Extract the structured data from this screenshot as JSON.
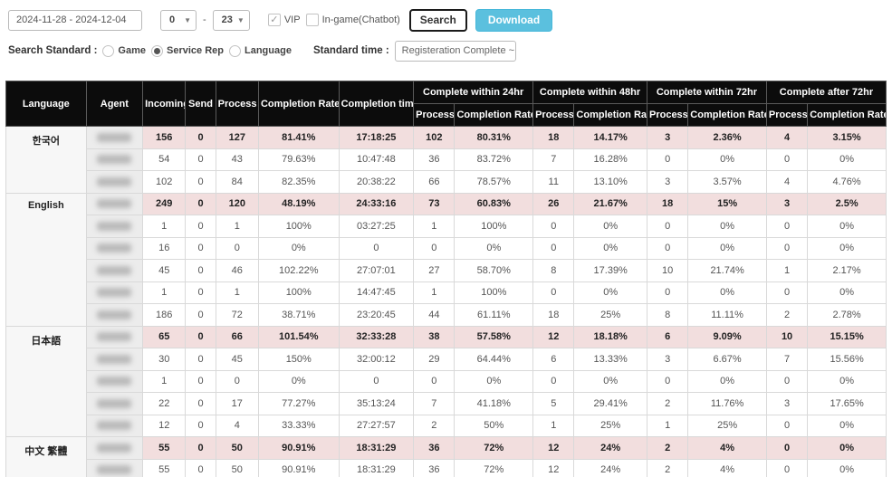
{
  "toolbar": {
    "date_range": "2024-11-28 - 2024-12-04",
    "hour_from": "0",
    "hour_separator": "-",
    "hour_to": "23",
    "vip_label": "VIP",
    "vip_checked": true,
    "check_glyph": "✓",
    "ingame_label": "In-game(Chatbot)",
    "ingame_checked": false,
    "search_label": "Search",
    "download_label": "Download"
  },
  "filters": {
    "search_standard_label": "Search Standard :",
    "options": [
      {
        "label": "Game",
        "selected": false
      },
      {
        "label": "Service Rep",
        "selected": true
      },
      {
        "label": "Language",
        "selected": false
      }
    ],
    "standard_time_label": "Standard time :",
    "standard_time_value": "Registeration Complete ~ Cor"
  },
  "colors": {
    "accent_download": "#5bc0de",
    "header_bg": "#0c0c0c",
    "total_row_bg": "#f2dede"
  },
  "table": {
    "headers": {
      "language": "Language",
      "agent": "Agent",
      "incoming": "Incoming",
      "send": "Send",
      "process": "Process",
      "completion_rate": "Completion Rate",
      "completion_time": "Completion time",
      "group_24": "Complete within 24hr",
      "group_48": "Complete within 48hr",
      "group_72": "Complete within 72hr",
      "group_after": "Complete after 72hr",
      "sub_process": "Process",
      "sub_completion_rate": "Completion Rate"
    },
    "groups": [
      {
        "language": "한국어",
        "rows": [
          {
            "total": true,
            "values": [
              "156",
              "0",
              "127",
              "81.41%",
              "17:18:25",
              "102",
              "80.31%",
              "18",
              "14.17%",
              "3",
              "2.36%",
              "4",
              "3.15%"
            ]
          },
          {
            "total": false,
            "values": [
              "54",
              "0",
              "43",
              "79.63%",
              "10:47:48",
              "36",
              "83.72%",
              "7",
              "16.28%",
              "0",
              "0%",
              "0",
              "0%"
            ]
          },
          {
            "total": false,
            "values": [
              "102",
              "0",
              "84",
              "82.35%",
              "20:38:22",
              "66",
              "78.57%",
              "11",
              "13.10%",
              "3",
              "3.57%",
              "4",
              "4.76%"
            ]
          }
        ]
      },
      {
        "language": "English",
        "rows": [
          {
            "total": true,
            "values": [
              "249",
              "0",
              "120",
              "48.19%",
              "24:33:16",
              "73",
              "60.83%",
              "26",
              "21.67%",
              "18",
              "15%",
              "3",
              "2.5%"
            ]
          },
          {
            "total": false,
            "values": [
              "1",
              "0",
              "1",
              "100%",
              "03:27:25",
              "1",
              "100%",
              "0",
              "0%",
              "0",
              "0%",
              "0",
              "0%"
            ]
          },
          {
            "total": false,
            "values": [
              "16",
              "0",
              "0",
              "0%",
              "0",
              "0",
              "0%",
              "0",
              "0%",
              "0",
              "0%",
              "0",
              "0%"
            ]
          },
          {
            "total": false,
            "values": [
              "45",
              "0",
              "46",
              "102.22%",
              "27:07:01",
              "27",
              "58.70%",
              "8",
              "17.39%",
              "10",
              "21.74%",
              "1",
              "2.17%"
            ]
          },
          {
            "total": false,
            "values": [
              "1",
              "0",
              "1",
              "100%",
              "14:47:45",
              "1",
              "100%",
              "0",
              "0%",
              "0",
              "0%",
              "0",
              "0%"
            ]
          },
          {
            "total": false,
            "values": [
              "186",
              "0",
              "72",
              "38.71%",
              "23:20:45",
              "44",
              "61.11%",
              "18",
              "25%",
              "8",
              "11.11%",
              "2",
              "2.78%"
            ]
          }
        ]
      },
      {
        "language": "日本語",
        "rows": [
          {
            "total": true,
            "values": [
              "65",
              "0",
              "66",
              "101.54%",
              "32:33:28",
              "38",
              "57.58%",
              "12",
              "18.18%",
              "6",
              "9.09%",
              "10",
              "15.15%"
            ]
          },
          {
            "total": false,
            "values": [
              "30",
              "0",
              "45",
              "150%",
              "32:00:12",
              "29",
              "64.44%",
              "6",
              "13.33%",
              "3",
              "6.67%",
              "7",
              "15.56%"
            ]
          },
          {
            "total": false,
            "values": [
              "1",
              "0",
              "0",
              "0%",
              "0",
              "0",
              "0%",
              "0",
              "0%",
              "0",
              "0%",
              "0",
              "0%"
            ]
          },
          {
            "total": false,
            "values": [
              "22",
              "0",
              "17",
              "77.27%",
              "35:13:24",
              "7",
              "41.18%",
              "5",
              "29.41%",
              "2",
              "11.76%",
              "3",
              "17.65%"
            ]
          },
          {
            "total": false,
            "values": [
              "12",
              "0",
              "4",
              "33.33%",
              "27:27:57",
              "2",
              "50%",
              "1",
              "25%",
              "1",
              "25%",
              "0",
              "0%"
            ]
          }
        ]
      },
      {
        "language": "中文 繁體",
        "rows": [
          {
            "total": true,
            "values": [
              "55",
              "0",
              "50",
              "90.91%",
              "18:31:29",
              "36",
              "72%",
              "12",
              "24%",
              "2",
              "4%",
              "0",
              "0%"
            ]
          },
          {
            "total": false,
            "values": [
              "55",
              "0",
              "50",
              "90.91%",
              "18:31:29",
              "36",
              "72%",
              "12",
              "24%",
              "2",
              "4%",
              "0",
              "0%"
            ]
          }
        ]
      }
    ]
  }
}
